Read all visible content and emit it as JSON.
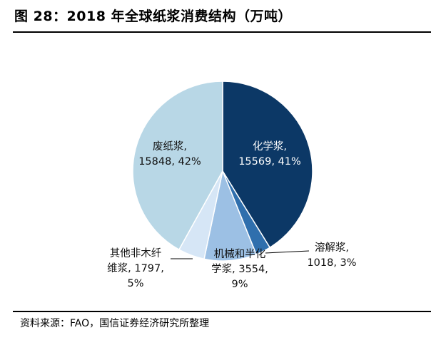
{
  "header": {
    "title": "图 28：2018 年全球纸浆消费结构（万吨）"
  },
  "footer": {
    "source": "资料来源：FAO，国信证券经济研究所整理"
  },
  "chart_data": {
    "type": "pie",
    "title": "图 28：2018 年全球纸浆消费结构（万吨）",
    "start_angle_deg": 0,
    "direction": "clockwise",
    "slices": [
      {
        "name": "化学浆",
        "value": 15569,
        "percent": "41%",
        "color": "#0c3866",
        "label_lines": [
          "化学浆,",
          "15569, 41%"
        ]
      },
      {
        "name": "溶解浆",
        "value": 1018,
        "percent": "3%",
        "color": "#2f6fad",
        "label_lines": [
          "溶解浆,",
          "1018, 3%"
        ]
      },
      {
        "name": "机械和半化学浆",
        "value": 3554,
        "percent": "9%",
        "color": "#9cc0e4",
        "label_lines": [
          "机械和半化",
          "学浆, 3554,",
          "9%"
        ]
      },
      {
        "name": "其他非木纤维浆",
        "value": 1797,
        "percent": "5%",
        "color": "#d6e6f6",
        "label_lines": [
          "其他非木纤",
          "维浆, 1797,",
          "5%"
        ]
      },
      {
        "name": "废纸浆",
        "value": 15848,
        "percent": "42%",
        "color": "#b8d7e6",
        "label_lines": [
          "废纸浆,",
          "15848, 42%"
        ]
      }
    ]
  }
}
